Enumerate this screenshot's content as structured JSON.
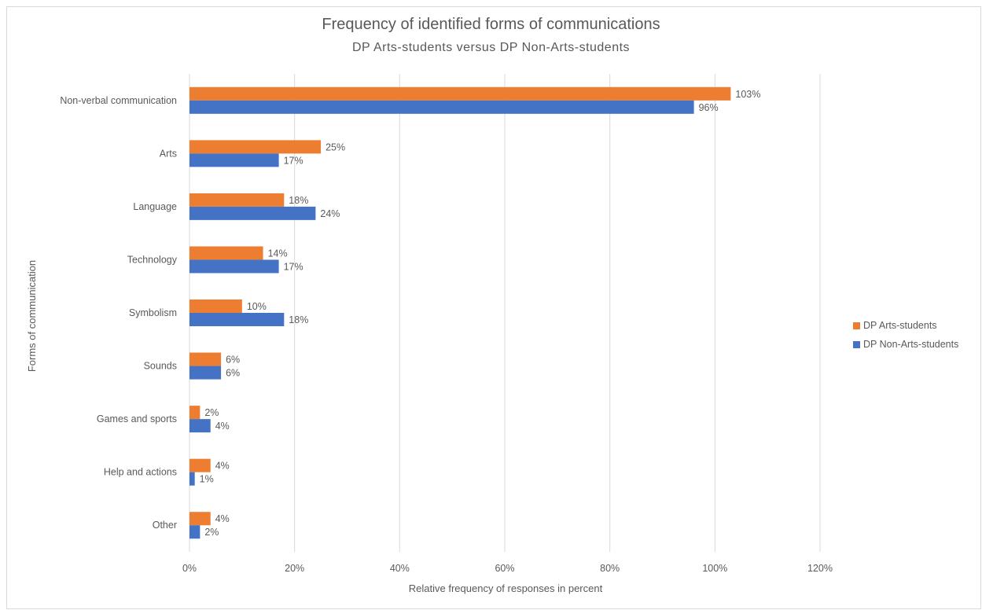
{
  "chart_data": {
    "type": "bar",
    "orientation": "horizontal",
    "title": "Frequency of identified forms of communications",
    "subtitle": "DP Arts-students versus DP Non-Arts-students",
    "xlabel": "Relative frequency of responses in percent",
    "ylabel": "Forms of communication",
    "xlim": [
      0,
      120
    ],
    "x_ticks": [
      0,
      20,
      40,
      60,
      80,
      100,
      120
    ],
    "x_tick_labels": [
      "0%",
      "20%",
      "40%",
      "60%",
      "80%",
      "100%",
      "120%"
    ],
    "grid": "vertical",
    "legend_position": "right",
    "categories": [
      "Non-verbal communication",
      "Arts",
      "Language",
      "Technology",
      "Symbolism",
      "Sounds",
      "Games and sports",
      "Help and actions",
      "Other"
    ],
    "series": [
      {
        "name": "DP Arts-students",
        "color": "#ed7d31",
        "values": [
          103,
          25,
          18,
          14,
          10,
          6,
          2,
          4,
          4
        ],
        "labels": [
          "103%",
          "25%",
          "18%",
          "14%",
          "10%",
          "6%",
          "2%",
          "4%",
          "4%"
        ]
      },
      {
        "name": "DP Non-Arts-students",
        "color": "#4472c4",
        "values": [
          96,
          17,
          24,
          17,
          18,
          6,
          4,
          1,
          2
        ],
        "labels": [
          "96%",
          "17%",
          "24%",
          "17%",
          "18%",
          "6%",
          "4%",
          "1%",
          "2%"
        ]
      }
    ]
  }
}
